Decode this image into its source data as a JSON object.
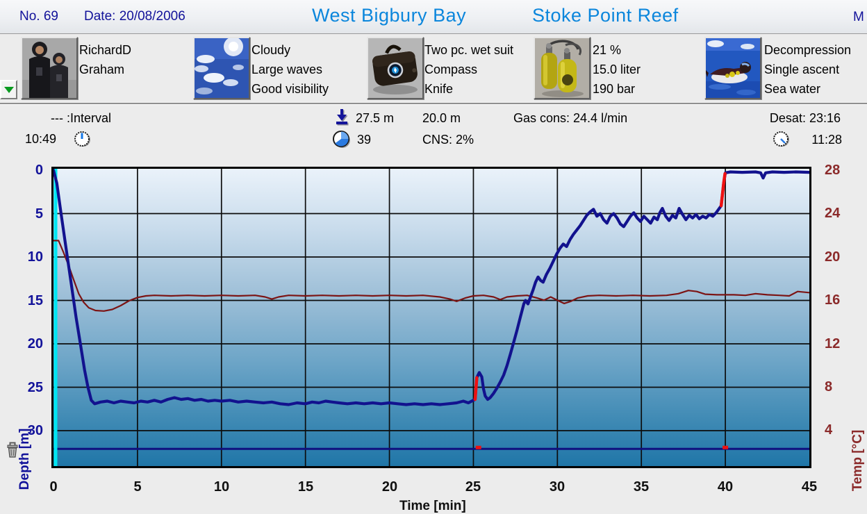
{
  "header": {
    "dive_no": "No. 69",
    "date": "Date: 20/08/2006",
    "site_name": "West Bigbury Bay",
    "site_detail": "Stoke Point Reef",
    "clipped_right": "M"
  },
  "info": {
    "buddies": {
      "lines": [
        "RichardD",
        "Graham",
        ""
      ]
    },
    "conditions": {
      "lines": [
        "Cloudy",
        "Large waves",
        "Good visibility"
      ]
    },
    "equipment": {
      "lines": [
        "Two pc. wet suit",
        "Compass",
        "Knife"
      ]
    },
    "tank": {
      "lines": [
        "21 %",
        "15.0 liter",
        "190 bar"
      ]
    },
    "dive_type": {
      "lines": [
        "Decompression",
        "Single ascent",
        "Sea water"
      ]
    }
  },
  "stats": {
    "interval_label": "--- :Interval",
    "start_time": "10:49",
    "max_depth": "27.5 m",
    "dive_time_min": "39",
    "mean_depth": "20.0 m",
    "cns": "CNS: 2%",
    "gas_consumption": "Gas cons: 24.4 l/min",
    "desaturation": "Desat: 23:16",
    "end_time": "11:28"
  },
  "icons": {
    "dropdown": "green-triangle-down",
    "start_time": "clock-hand-up",
    "max_depth": "arrow-down-to-bar",
    "dive_time": "pie-clock",
    "end_time": "clock-hand-diagonal",
    "chart_corner": "trash-bin"
  },
  "colors": {
    "title_blue": "#0b86dc",
    "navy_text": "#12129a",
    "temp_axis_red": "#8b2a2a",
    "page_bg": "#ececec"
  },
  "chart_data": {
    "type": "line",
    "xlabel": "Time [min]",
    "ylabel_left": "Depth [m]",
    "ylabel_right": "Temp [°C]",
    "x_range": [
      0,
      45
    ],
    "x_ticks": [
      0,
      5,
      10,
      15,
      20,
      25,
      30,
      35,
      40,
      45
    ],
    "depth_ticks": [
      0,
      5,
      10,
      15,
      20,
      25,
      30
    ],
    "depth_axis_bottom": 34.1,
    "temp_ticks": [
      28,
      24,
      20,
      16,
      12,
      8,
      4
    ],
    "grid": true,
    "legend": "none",
    "colors": {
      "depth_line": "#12128e",
      "temp_line": "#7c1414",
      "warning_red": "#ee1111",
      "grid": "#0c0c0c",
      "start_marker_cyan": "#00e6f2",
      "bottom_marker_navy": "#10107e"
    },
    "bottom_marker": {
      "depth": 32.1,
      "red_marks_min": [
        25.3,
        40.0
      ]
    },
    "series": [
      {
        "name": "Depth [m]",
        "points": [
          [
            0,
            0
          ],
          [
            0.2,
            1.5
          ],
          [
            0.45,
            5
          ],
          [
            0.75,
            9
          ],
          [
            1.05,
            13
          ],
          [
            1.35,
            17
          ],
          [
            1.6,
            20
          ],
          [
            1.85,
            23
          ],
          [
            2.05,
            25
          ],
          [
            2.25,
            26.5
          ],
          [
            2.45,
            26.9
          ],
          [
            2.8,
            26.7
          ],
          [
            3.2,
            26.6
          ],
          [
            3.6,
            26.8
          ],
          [
            4,
            26.6
          ],
          [
            4.4,
            26.7
          ],
          [
            4.8,
            26.8
          ],
          [
            5.2,
            26.6
          ],
          [
            5.6,
            26.7
          ],
          [
            6,
            26.5
          ],
          [
            6.4,
            26.7
          ],
          [
            6.8,
            26.4
          ],
          [
            7.2,
            26.2
          ],
          [
            7.6,
            26.4
          ],
          [
            8,
            26.3
          ],
          [
            8.4,
            26.5
          ],
          [
            8.8,
            26.4
          ],
          [
            9.2,
            26.6
          ],
          [
            9.6,
            26.5
          ],
          [
            10,
            26.6
          ],
          [
            10.5,
            26.5
          ],
          [
            11,
            26.7
          ],
          [
            11.5,
            26.6
          ],
          [
            12,
            26.7
          ],
          [
            12.5,
            26.8
          ],
          [
            13,
            26.7
          ],
          [
            13.5,
            26.9
          ],
          [
            14,
            27
          ],
          [
            14.5,
            26.8
          ],
          [
            15,
            26.9
          ],
          [
            15.4,
            26.7
          ],
          [
            15.8,
            26.8
          ],
          [
            16.2,
            26.6
          ],
          [
            16.6,
            26.7
          ],
          [
            17,
            26.8
          ],
          [
            17.5,
            26.9
          ],
          [
            18,
            26.8
          ],
          [
            18.5,
            26.9
          ],
          [
            19,
            26.8
          ],
          [
            19.5,
            26.9
          ],
          [
            20,
            26.8
          ],
          [
            20.5,
            26.9
          ],
          [
            21,
            27
          ],
          [
            21.5,
            26.9
          ],
          [
            22,
            27
          ],
          [
            22.5,
            26.9
          ],
          [
            23,
            27
          ],
          [
            23.5,
            26.9
          ],
          [
            24,
            26.8
          ],
          [
            24.4,
            26.6
          ],
          [
            24.7,
            26.8
          ],
          [
            25,
            26.5
          ],
          [
            25.1,
            26.4
          ],
          [
            25.2,
            23.9
          ],
          [
            25.35,
            23.3
          ],
          [
            25.5,
            23.8
          ],
          [
            25.6,
            25.2
          ],
          [
            25.7,
            26
          ],
          [
            25.85,
            26.4
          ],
          [
            26,
            26.2
          ],
          [
            26.2,
            25.7
          ],
          [
            26.4,
            25.1
          ],
          [
            26.6,
            24.4
          ],
          [
            26.8,
            23.6
          ],
          [
            27,
            22.5
          ],
          [
            27.2,
            21.2
          ],
          [
            27.4,
            19.8
          ],
          [
            27.6,
            18.4
          ],
          [
            27.8,
            16.9
          ],
          [
            28,
            15.4
          ],
          [
            28.1,
            15
          ],
          [
            28.25,
            15.4
          ],
          [
            28.4,
            14.6
          ],
          [
            28.55,
            13.8
          ],
          [
            28.7,
            12.9
          ],
          [
            28.85,
            12.3
          ],
          [
            29,
            12.7
          ],
          [
            29.15,
            12.9
          ],
          [
            29.35,
            12
          ],
          [
            29.55,
            11.3
          ],
          [
            29.75,
            10.5
          ],
          [
            29.95,
            9.7
          ],
          [
            30.15,
            9
          ],
          [
            30.35,
            8.5
          ],
          [
            30.55,
            8.8
          ],
          [
            30.75,
            8
          ],
          [
            30.95,
            7.4
          ],
          [
            31.15,
            6.9
          ],
          [
            31.35,
            6.4
          ],
          [
            31.55,
            5.8
          ],
          [
            31.75,
            5.2
          ],
          [
            31.95,
            4.8
          ],
          [
            32.15,
            4.5
          ],
          [
            32.35,
            5.3
          ],
          [
            32.55,
            5
          ],
          [
            32.75,
            5.7
          ],
          [
            32.95,
            6.1
          ],
          [
            33.15,
            5.3
          ],
          [
            33.35,
            5
          ],
          [
            33.55,
            5.5
          ],
          [
            33.75,
            6.2
          ],
          [
            33.95,
            6.5
          ],
          [
            34.15,
            5.9
          ],
          [
            34.35,
            5.3
          ],
          [
            34.55,
            4.9
          ],
          [
            34.75,
            5.5
          ],
          [
            34.95,
            5.9
          ],
          [
            35.15,
            5.3
          ],
          [
            35.35,
            5.7
          ],
          [
            35.55,
            6.1
          ],
          [
            35.75,
            5.4
          ],
          [
            35.95,
            5.7
          ],
          [
            36.1,
            4.9
          ],
          [
            36.25,
            4.4
          ],
          [
            36.45,
            5.3
          ],
          [
            36.65,
            5.8
          ],
          [
            36.85,
            5.2
          ],
          [
            37.05,
            5.5
          ],
          [
            37.25,
            4.4
          ],
          [
            37.45,
            5.1
          ],
          [
            37.65,
            5.7
          ],
          [
            37.85,
            5.2
          ],
          [
            38.05,
            5.5
          ],
          [
            38.25,
            5.1
          ],
          [
            38.45,
            5.6
          ],
          [
            38.65,
            5.3
          ],
          [
            38.85,
            5.5
          ],
          [
            39.05,
            5.1
          ],
          [
            39.25,
            5.3
          ],
          [
            39.45,
            4.9
          ],
          [
            39.6,
            4.5
          ],
          [
            39.75,
            4.1
          ],
          [
            39.9,
            1.5
          ],
          [
            40,
            0.3
          ],
          [
            40.3,
            0.2
          ],
          [
            41,
            0.25
          ],
          [
            41.8,
            0.2
          ],
          [
            42.1,
            0.3
          ],
          [
            42.25,
            0.9
          ],
          [
            42.4,
            0.3
          ],
          [
            42.8,
            0.2
          ],
          [
            43.5,
            0.25
          ],
          [
            44.2,
            0.2
          ],
          [
            45,
            0.25
          ]
        ]
      },
      {
        "name": "Temp [°C]",
        "points": [
          [
            0,
            21.5
          ],
          [
            0.3,
            21.5
          ],
          [
            0.6,
            20.4
          ],
          [
            0.9,
            19.2
          ],
          [
            1.2,
            17.9
          ],
          [
            1.5,
            16.6
          ],
          [
            1.8,
            15.8
          ],
          [
            2.1,
            15.3
          ],
          [
            2.5,
            15.05
          ],
          [
            3,
            15
          ],
          [
            3.5,
            15.15
          ],
          [
            4,
            15.5
          ],
          [
            4.5,
            15.95
          ],
          [
            5,
            16.25
          ],
          [
            5.5,
            16.4
          ],
          [
            6,
            16.45
          ],
          [
            7,
            16.4
          ],
          [
            8,
            16.45
          ],
          [
            9,
            16.4
          ],
          [
            10,
            16.45
          ],
          [
            11,
            16.4
          ],
          [
            12,
            16.45
          ],
          [
            12.6,
            16.3
          ],
          [
            13,
            16.1
          ],
          [
            13.4,
            16.3
          ],
          [
            14,
            16.45
          ],
          [
            15,
            16.4
          ],
          [
            16,
            16.45
          ],
          [
            17,
            16.4
          ],
          [
            18,
            16.45
          ],
          [
            19,
            16.4
          ],
          [
            20,
            16.45
          ],
          [
            21,
            16.4
          ],
          [
            22,
            16.45
          ],
          [
            23,
            16.3
          ],
          [
            23.6,
            16.1
          ],
          [
            24,
            15.9
          ],
          [
            24.5,
            16.2
          ],
          [
            25,
            16.4
          ],
          [
            25.6,
            16.45
          ],
          [
            26.2,
            16.3
          ],
          [
            26.6,
            16.05
          ],
          [
            27,
            16.3
          ],
          [
            27.6,
            16.4
          ],
          [
            28.2,
            16.45
          ],
          [
            28.8,
            16.2
          ],
          [
            29.2,
            16
          ],
          [
            29.6,
            16.3
          ],
          [
            30,
            16
          ],
          [
            30.4,
            15.7
          ],
          [
            30.8,
            15.9
          ],
          [
            31.2,
            16.2
          ],
          [
            31.8,
            16.4
          ],
          [
            32.5,
            16.45
          ],
          [
            33.5,
            16.4
          ],
          [
            34.5,
            16.45
          ],
          [
            35.5,
            16.4
          ],
          [
            36.5,
            16.45
          ],
          [
            37.2,
            16.6
          ],
          [
            37.8,
            16.9
          ],
          [
            38.3,
            16.8
          ],
          [
            38.8,
            16.55
          ],
          [
            39.5,
            16.5
          ],
          [
            40.5,
            16.5
          ],
          [
            41.2,
            16.45
          ],
          [
            41.8,
            16.6
          ],
          [
            42.5,
            16.5
          ],
          [
            43.2,
            16.45
          ],
          [
            43.8,
            16.4
          ],
          [
            44.3,
            16.8
          ],
          [
            45,
            16.7
          ]
        ]
      }
    ],
    "ascent_warnings": [
      {
        "points": [
          [
            25.1,
            26.4
          ],
          [
            25.2,
            23.9
          ]
        ]
      },
      {
        "points": [
          [
            39.75,
            4.1
          ],
          [
            39.9,
            1.5
          ],
          [
            39.98,
            0.4
          ]
        ]
      }
    ]
  }
}
